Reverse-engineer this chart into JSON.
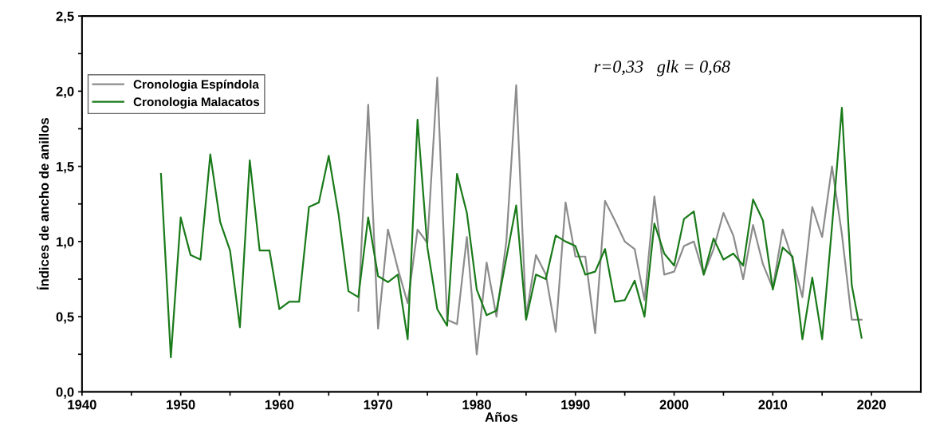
{
  "chart_data": {
    "type": "line",
    "xlabel": "Años",
    "ylabel": "Índices de ancho de anillos",
    "annotations": [
      "r=0,33   glk = 0,68"
    ],
    "xlim": [
      1940,
      2025
    ],
    "ylim": [
      0,
      2.5
    ],
    "xticks": [
      1940,
      {
        "value": 1945,
        "label": null
      },
      1950,
      {
        "value": 1955,
        "label": null
      },
      1960,
      {
        "value": 1965,
        "label": null
      },
      1970,
      {
        "value": 1975,
        "label": null
      },
      1980,
      {
        "value": 1985,
        "label": null
      },
      1990,
      {
        "value": 1995,
        "label": null
      },
      2000,
      {
        "value": 2005,
        "label": null
      },
      2010,
      {
        "value": 2015,
        "label": null
      },
      2020
    ],
    "yticks": [
      {
        "value": 0,
        "label": "0,0"
      },
      {
        "value": 0.25,
        "label": null
      },
      {
        "value": 0.5,
        "label": "0,5"
      },
      {
        "value": 0.75,
        "label": null
      },
      {
        "value": 1,
        "label": "1,0"
      },
      {
        "value": 1.25,
        "label": null
      },
      {
        "value": 1.5,
        "label": "1,5"
      },
      {
        "value": 1.75,
        "label": null
      },
      {
        "value": 2,
        "label": "2,0"
      },
      {
        "value": 2.25,
        "label": null
      },
      {
        "value": 2.5,
        "label": "2,5"
      }
    ],
    "grid": false,
    "legend": "top left",
    "marker": "none",
    "line_style": "solid",
    "series": [
      {
        "name": "Cronologia Espíndola",
        "color": "#8c8c8c",
        "x": [
          1968,
          1969,
          1970,
          1971,
          1972,
          1973,
          1974,
          1975,
          1976,
          1977,
          1978,
          1979,
          1980,
          1981,
          1982,
          1983,
          1984,
          1985,
          1986,
          1987,
          1988,
          1989,
          1990,
          1991,
          1992,
          1993,
          1994,
          1995,
          1996,
          1997,
          1998,
          1999,
          2000,
          2001,
          2002,
          2003,
          2004,
          2005,
          2006,
          2007,
          2008,
          2009,
          2010,
          2011,
          2012,
          2013,
          2014,
          2015,
          2016,
          2017,
          2018,
          2019
        ],
        "values": [
          0.54,
          1.91,
          0.42,
          1.08,
          0.82,
          0.59,
          1.08,
          0.99,
          2.09,
          0.48,
          0.45,
          1.03,
          0.25,
          0.86,
          0.5,
          1.0,
          2.04,
          0.5,
          0.91,
          0.78,
          0.4,
          1.26,
          0.9,
          0.9,
          0.39,
          1.27,
          1.14,
          1.0,
          0.95,
          0.61,
          1.3,
          0.78,
          0.8,
          0.97,
          1.0,
          0.78,
          0.95,
          1.19,
          1.04,
          0.75,
          1.11,
          0.85,
          0.69,
          1.08,
          0.88,
          0.63,
          1.23,
          1.03,
          1.5,
          1.05,
          0.48,
          0.48
        ]
      },
      {
        "name": "Cronologia Malacatos",
        "color": "#1a7a1a",
        "x": [
          1948,
          1949,
          1950,
          1951,
          1952,
          1953,
          1954,
          1955,
          1956,
          1957,
          1958,
          1959,
          1960,
          1961,
          1962,
          1963,
          1964,
          1965,
          1966,
          1967,
          1968,
          1969,
          1970,
          1971,
          1972,
          1973,
          1974,
          1975,
          1976,
          1977,
          1978,
          1979,
          1980,
          1981,
          1982,
          1983,
          1984,
          1985,
          1986,
          1987,
          1988,
          1989,
          1990,
          1991,
          1992,
          1993,
          1994,
          1995,
          1996,
          1997,
          1998,
          1999,
          2000,
          2001,
          2002,
          2003,
          2004,
          2005,
          2006,
          2007,
          2008,
          2009,
          2010,
          2011,
          2012,
          2013,
          2014,
          2015,
          2016,
          2017,
          2018,
          2019
        ],
        "values": [
          1.45,
          0.23,
          1.16,
          0.91,
          0.88,
          1.58,
          1.13,
          0.94,
          0.43,
          1.54,
          0.94,
          0.94,
          0.55,
          0.6,
          0.6,
          1.23,
          1.26,
          1.57,
          1.18,
          0.67,
          0.63,
          1.16,
          0.77,
          0.73,
          0.78,
          0.35,
          1.81,
          0.96,
          0.55,
          0.44,
          1.45,
          1.19,
          0.68,
          0.51,
          0.54,
          0.89,
          1.24,
          0.48,
          0.78,
          0.75,
          1.04,
          1.0,
          0.97,
          0.78,
          0.8,
          0.95,
          0.6,
          0.61,
          0.74,
          0.5,
          1.12,
          0.92,
          0.84,
          1.15,
          1.2,
          0.78,
          1.02,
          0.88,
          0.92,
          0.84,
          1.28,
          1.14,
          0.68,
          0.96,
          0.9,
          0.35,
          0.76,
          0.35,
          1.1,
          1.89,
          0.71,
          0.36
        ]
      }
    ]
  }
}
